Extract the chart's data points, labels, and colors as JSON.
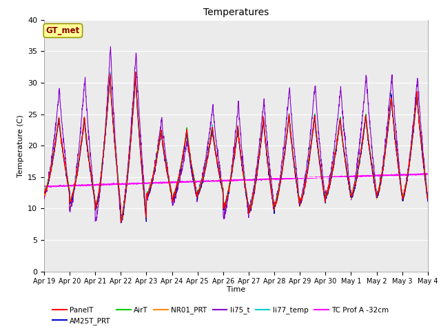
{
  "title": "Temperatures",
  "ylabel": "Temperature (C)",
  "xlabel": "Time",
  "ylim": [
    0,
    40
  ],
  "bg_color": "#ebebeb",
  "gt_met_label": "GT_met",
  "gt_met_text_color": "#8b0000",
  "gt_met_box_color": "#ffff99",
  "gt_met_border_color": "#999900",
  "series_colors": {
    "PanelT": "#ff0000",
    "AM25T_PRT": "#0000cc",
    "AirT": "#00cc00",
    "NR01_PRT": "#ff8800",
    "li75_t": "#8800cc",
    "li77_temp": "#00cccc",
    "TC Prof A -32cm": "#ff00ff"
  },
  "tick_labels": [
    "Apr 19",
    "Apr 20",
    "Apr 21",
    "Apr 22",
    "Apr 23",
    "Apr 24",
    "Apr 25",
    "Apr 26",
    "Apr 27",
    "Apr 28",
    "Apr 29",
    "Apr 30",
    "May 1",
    "May 2",
    "May 3",
    "May 4"
  ],
  "figsize": [
    6.4,
    4.8
  ],
  "dpi": 100
}
